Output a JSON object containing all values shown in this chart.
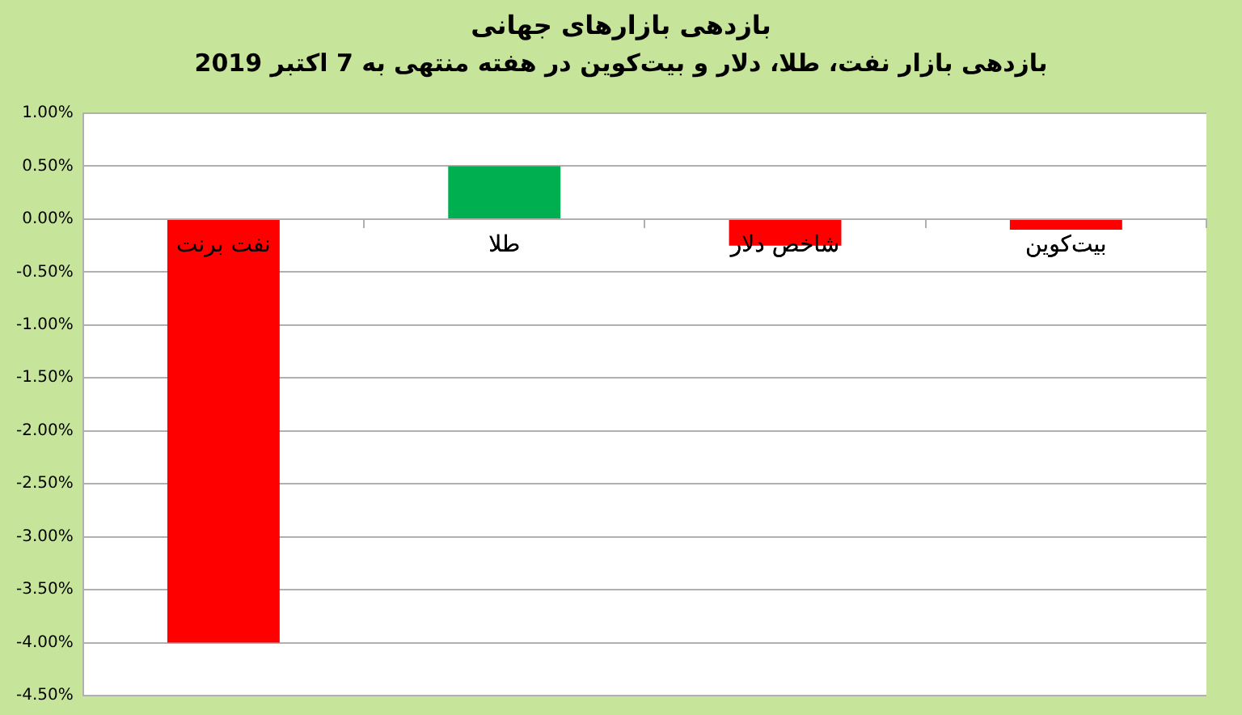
{
  "chart_data": {
    "type": "bar",
    "title": "بازدهی بازارهای جهانی",
    "subtitle": "بازدهی بازار نفت، طلا، دلار و بیت‌کوین در هفته منتهی به 7 اکتبر 2019",
    "categories": [
      "نفت برنت",
      "طلا",
      "شاخص دلار",
      "بیت‌کوین"
    ],
    "values": [
      -4.0,
      0.5,
      -0.25,
      -0.1
    ],
    "colors": [
      "#ff0000",
      "#00b050",
      "#ff0000",
      "#ff0000"
    ],
    "ylim": [
      -4.5,
      1.0
    ],
    "yticks": [
      {
        "value": -4.5,
        "label": "-4.50%"
      },
      {
        "value": -4.0,
        "label": "-4.00%"
      },
      {
        "value": -3.5,
        "label": "-3.50%"
      },
      {
        "value": -3.0,
        "label": "-3.00%"
      },
      {
        "value": -2.5,
        "label": "-2.50%"
      },
      {
        "value": -2.0,
        "label": "-2.00%"
      },
      {
        "value": -1.5,
        "label": "-1.50%"
      },
      {
        "value": -1.0,
        "label": "-1.00%"
      },
      {
        "value": -0.5,
        "label": "-0.50%"
      },
      {
        "value": 0,
        "label": "0.00%"
      },
      {
        "value": 0.5,
        "label": "0.50%"
      },
      {
        "value": 1.0,
        "label": "1.00%"
      }
    ],
    "grid": "y",
    "legend": false
  }
}
